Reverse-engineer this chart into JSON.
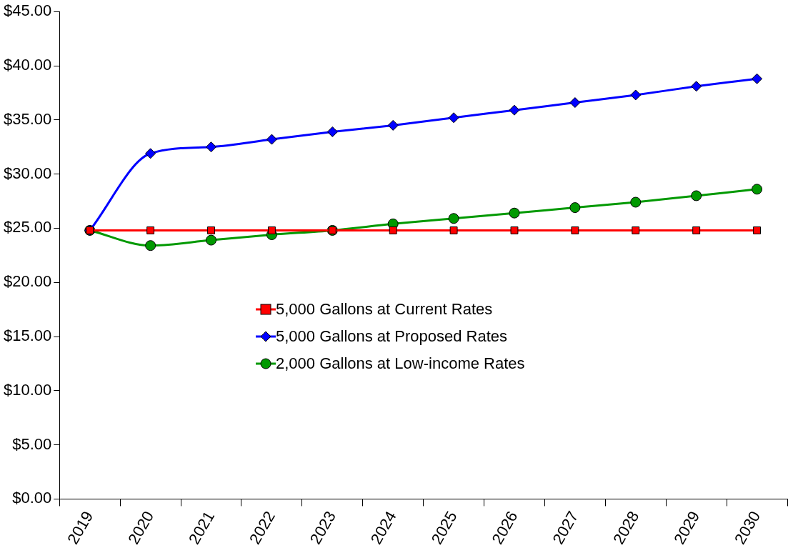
{
  "chart_data": {
    "type": "line",
    "categories": [
      "2019",
      "2020",
      "2021",
      "2022",
      "2023",
      "2024",
      "2025",
      "2026",
      "2027",
      "2028",
      "2029",
      "2030"
    ],
    "series": [
      {
        "name": "5,000 Gallons at Current Rates",
        "color": "#ff0000",
        "marker": "square",
        "values": [
          24.8,
          24.8,
          24.8,
          24.8,
          24.8,
          24.8,
          24.8,
          24.8,
          24.8,
          24.8,
          24.8,
          24.8
        ]
      },
      {
        "name": "5,000 Gallons at Proposed Rates",
        "color": "#0000ff",
        "marker": "diamond",
        "values": [
          24.8,
          31.9,
          32.5,
          33.2,
          33.9,
          34.5,
          35.2,
          35.9,
          36.6,
          37.3,
          38.1,
          38.8
        ]
      },
      {
        "name": "2,000 Gallons at Low-income Rates",
        "color": "#009900",
        "marker": "circle",
        "values": [
          24.8,
          23.4,
          23.9,
          24.4,
          24.8,
          25.4,
          25.9,
          26.4,
          26.9,
          27.4,
          28.0,
          28.6
        ]
      }
    ],
    "ylim": [
      0,
      45
    ],
    "yticks": [
      {
        "value": 0,
        "label": "$0.00"
      },
      {
        "value": 5,
        "label": "$5.00"
      },
      {
        "value": 10,
        "label": "$10.00"
      },
      {
        "value": 15,
        "label": "$15.00"
      },
      {
        "value": 20,
        "label": "$20.00"
      },
      {
        "value": 25,
        "label": "$25.00"
      },
      {
        "value": 30,
        "label": "$30.00"
      },
      {
        "value": 35,
        "label": "$35.00"
      },
      {
        "value": 40,
        "label": "$40.00"
      },
      {
        "value": 45,
        "label": "$45.00"
      }
    ],
    "grid": false,
    "legend": "center",
    "line_style": "solid"
  }
}
